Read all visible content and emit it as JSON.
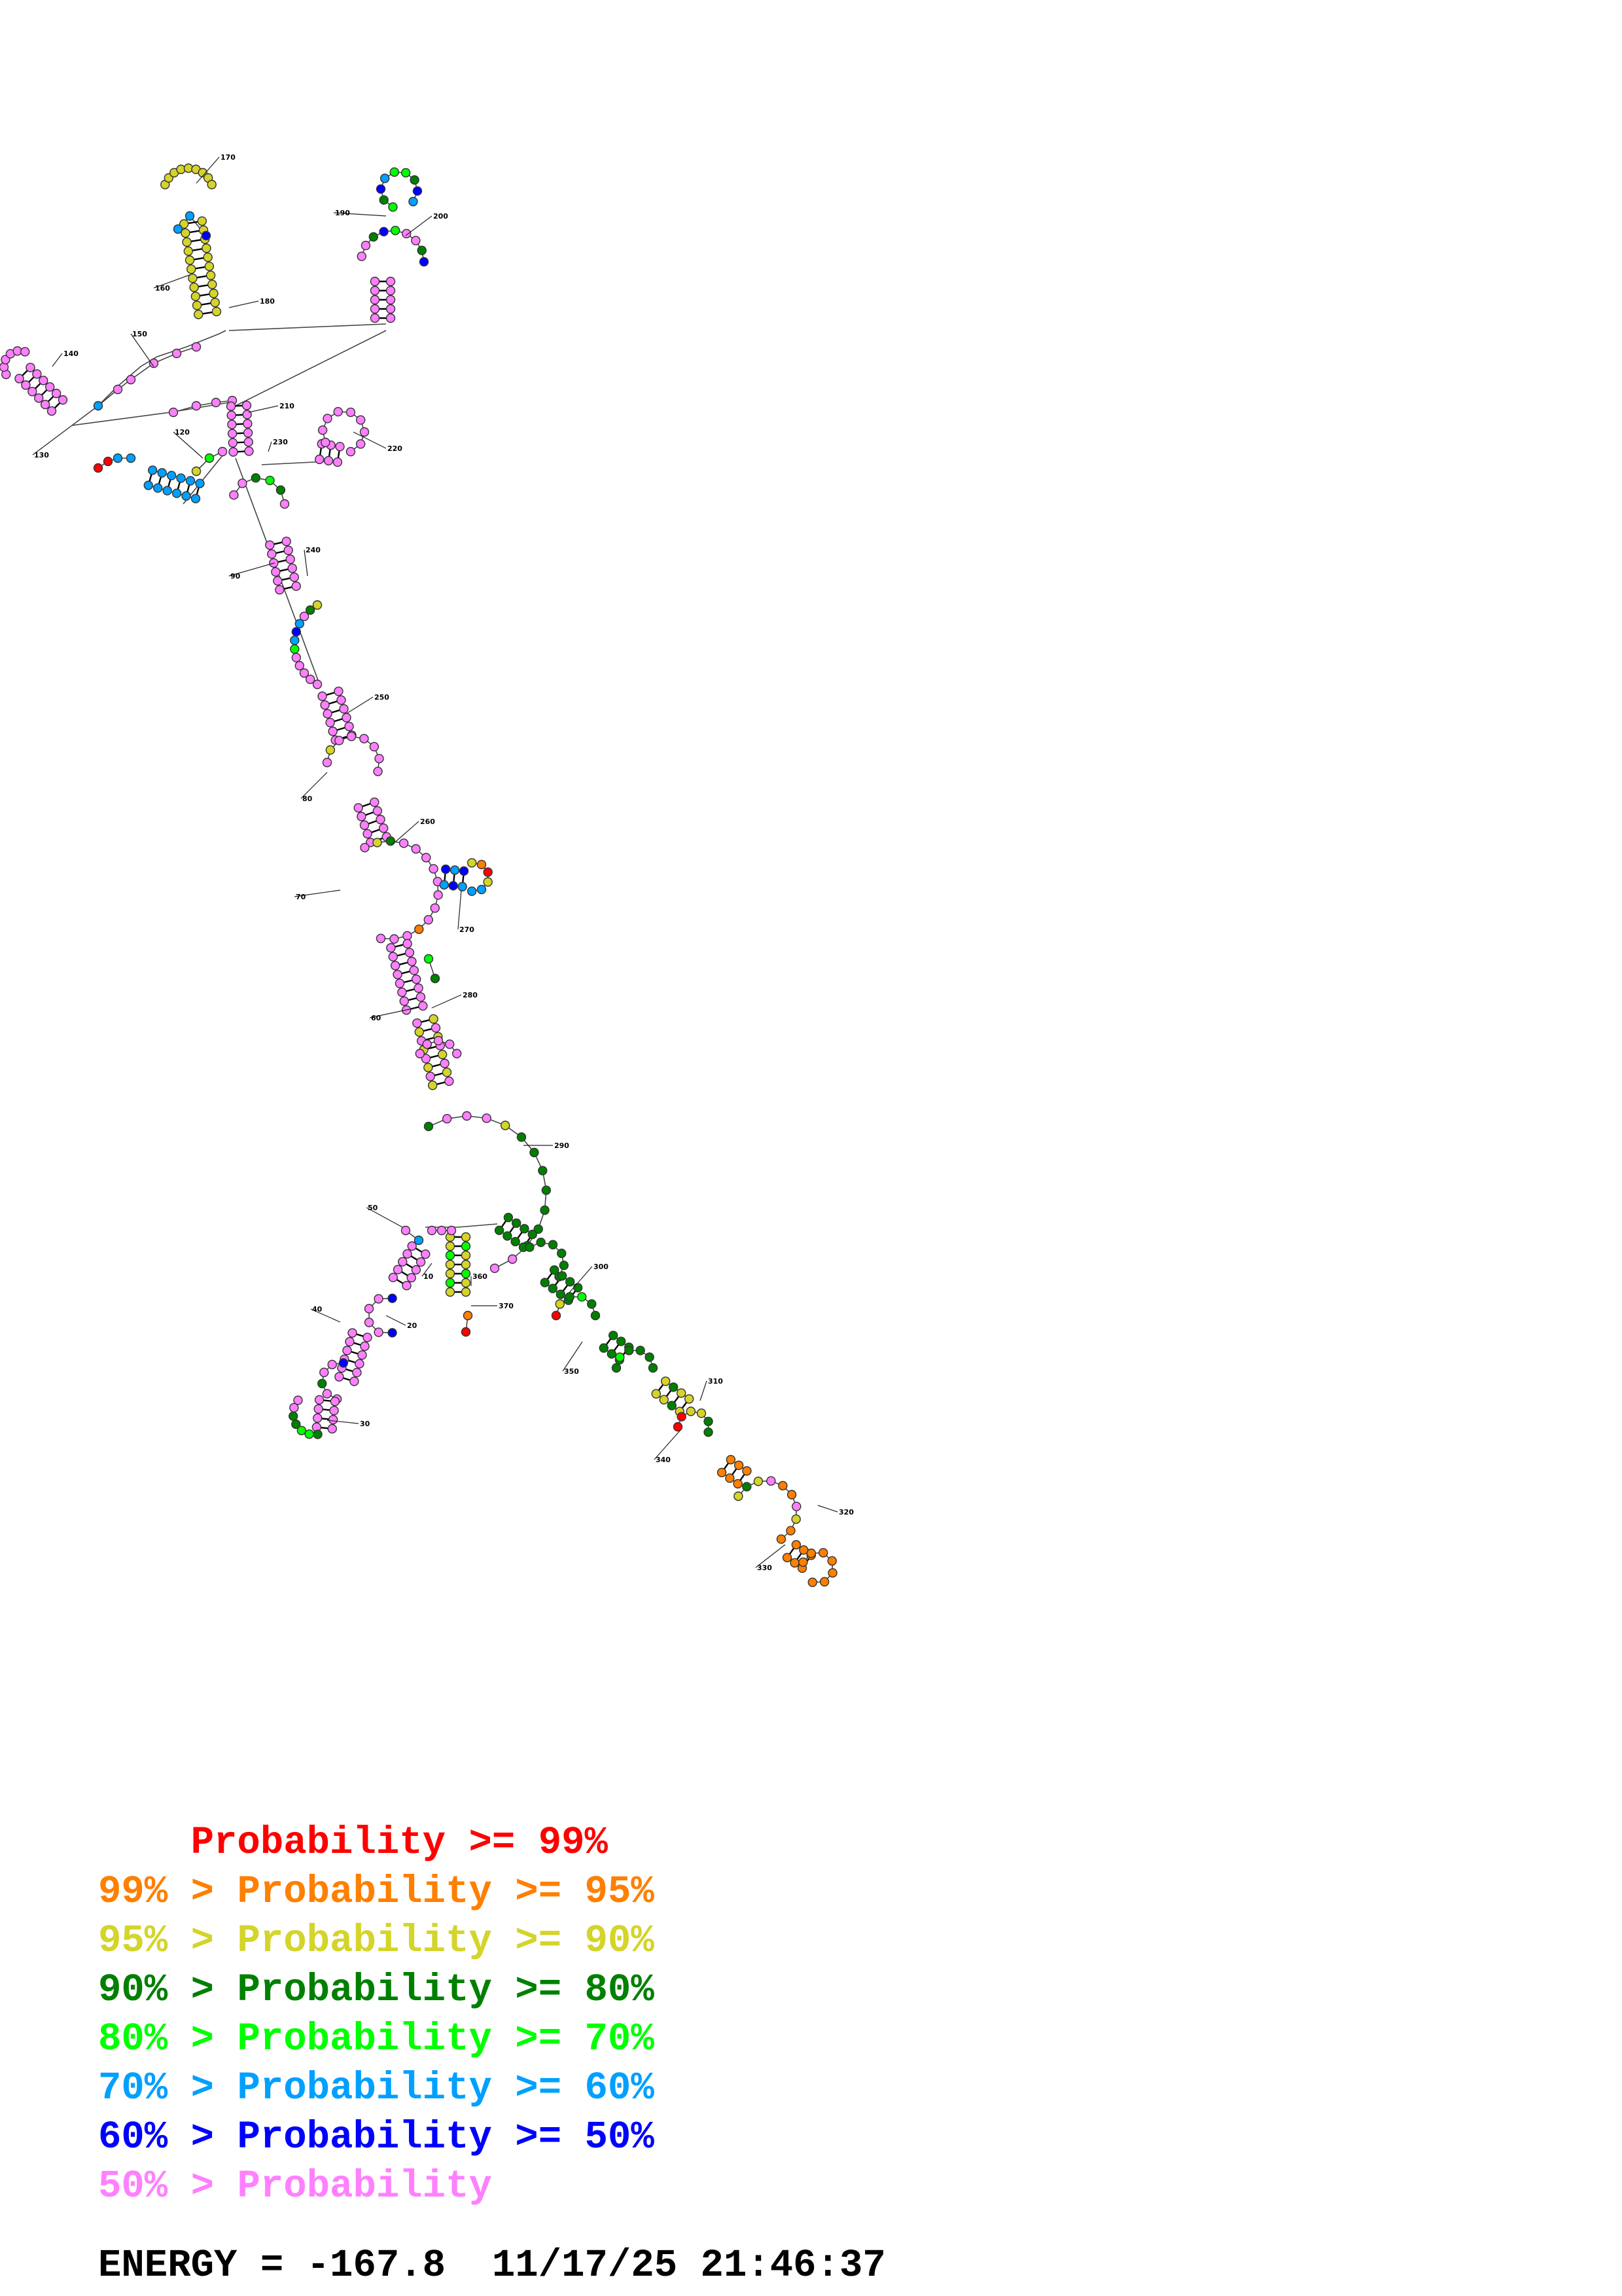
{
  "structure": {
    "labels": [
      "10",
      "20",
      "30",
      "40",
      "50",
      "60",
      "70",
      "80",
      "90",
      "120",
      "130",
      "140",
      "150",
      "160",
      "170",
      "180",
      "190",
      "200",
      "210",
      "220",
      "230",
      "240",
      "250",
      "260",
      "270",
      "280",
      "290",
      "300",
      "310",
      "320",
      "330",
      "340",
      "350",
      "360",
      "370"
    ]
  },
  "legend": {
    "items": [
      {
        "prefix": "    ",
        "text": "Probability >= 99%",
        "color": "#ff0000"
      },
      {
        "prefix": "99% > ",
        "text": "Probability >= 95%",
        "color": "#ff7f00"
      },
      {
        "prefix": "95% > ",
        "text": "Probability >= 90%",
        "color": "#d4d42a"
      },
      {
        "prefix": "90% > ",
        "text": "Probability >= 80%",
        "color": "#008000"
      },
      {
        "prefix": "80% > ",
        "text": "Probability >= 70%",
        "color": "#00ff00"
      },
      {
        "prefix": "70% > ",
        "text": "Probability >= 60%",
        "color": "#00a0ff"
      },
      {
        "prefix": "60% > ",
        "text": "Probability >= 50%",
        "color": "#0000ff"
      },
      {
        "prefix": "50% > ",
        "text": "Probability",
        "color": "#ff80ff"
      }
    ]
  },
  "footer": {
    "energy": "ENERGY = -167.8  11/17/25 21:46:37"
  },
  "colors": {
    "p99": "#ff0000",
    "p95": "#ff7f00",
    "p90": "#d4d42a",
    "p80": "#008000",
    "p70": "#00ff00",
    "p60": "#00a0ff",
    "p50": "#0000ff",
    "plow": "#ff80ff"
  }
}
